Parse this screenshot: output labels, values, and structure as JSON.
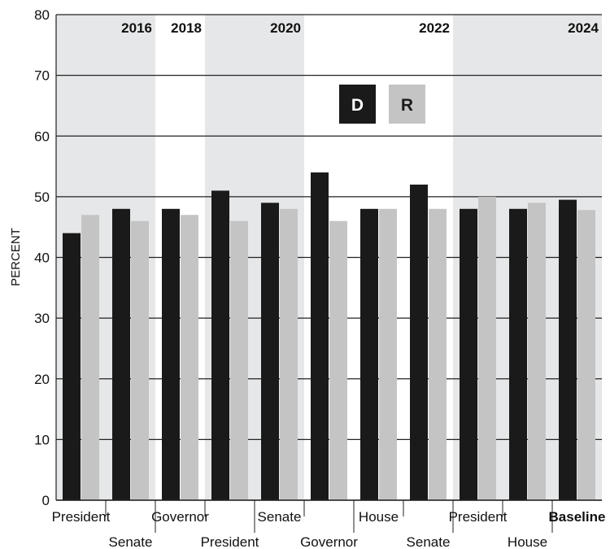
{
  "chart_data": {
    "type": "bar",
    "ylabel": "PERCENT",
    "ylim": [
      0,
      80
    ],
    "yticks": [
      0,
      10,
      20,
      30,
      40,
      50,
      60,
      70,
      80
    ],
    "grid": true,
    "legend": {
      "placement": "top-center",
      "entries": [
        {
          "label": "D",
          "color": "#1a1a1a",
          "text_color": "#ffffff"
        },
        {
          "label": "R",
          "color": "#c4c4c4",
          "text_color": "#1a1a1a"
        }
      ]
    },
    "categories": [
      "President",
      "Senate",
      "Governor",
      "President",
      "Senate",
      "Governor",
      "House",
      "Senate",
      "President",
      "House",
      "Baseline"
    ],
    "category_emphasis": [
      false,
      false,
      false,
      false,
      false,
      false,
      false,
      false,
      false,
      false,
      true
    ],
    "series": [
      {
        "name": "D",
        "color": "#1a1a1a",
        "values": [
          44,
          48,
          48,
          51,
          49,
          54,
          48,
          52,
          48,
          48,
          49.5
        ]
      },
      {
        "name": "R",
        "color": "#c4c4c4",
        "values": [
          47,
          46,
          47,
          46,
          48,
          46,
          48,
          48,
          50,
          49,
          47.8
        ]
      }
    ],
    "year_labels": [
      {
        "label": "2016",
        "after_category": 1
      },
      {
        "label": "2018",
        "after_category": 2
      },
      {
        "label": "2020",
        "after_category": 4
      },
      {
        "label": "2022",
        "after_category": 7
      },
      {
        "label": "2024",
        "after_category": 10
      }
    ],
    "shaded_bands": [
      {
        "from_category": 0,
        "to_category": 1,
        "color": "#e6e7e8"
      },
      {
        "from_category": 3,
        "to_category": 4,
        "color": "#e6e7e8"
      },
      {
        "from_category": 8,
        "to_category": 10,
        "color": "#e6e7e8"
      }
    ]
  }
}
